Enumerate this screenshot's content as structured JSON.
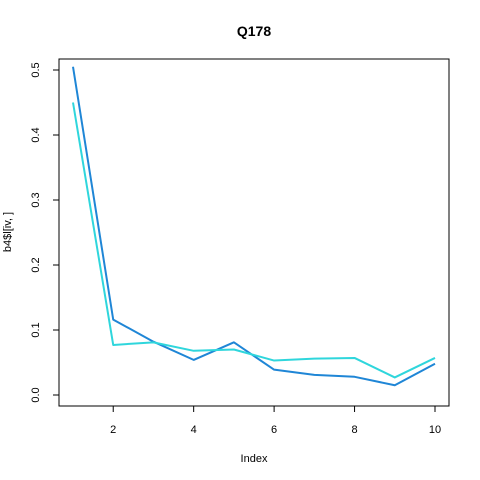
{
  "chart_data": {
    "type": "line",
    "title": "Q178",
    "xlabel": "Index",
    "ylabel": "b4$l[iv, ]",
    "x": [
      1,
      2,
      3,
      4,
      5,
      6,
      7,
      8,
      9,
      10
    ],
    "xlim": [
      1,
      10
    ],
    "ylim": [
      0,
      0.5
    ],
    "x_ticks": [
      2,
      4,
      6,
      8,
      10
    ],
    "y_ticks": [
      0.0,
      0.1,
      0.2,
      0.3,
      0.4,
      0.5
    ],
    "x_tick_labels": [
      "2",
      "4",
      "6",
      "8",
      "10"
    ],
    "y_tick_labels": [
      "0.0",
      "0.1",
      "0.2",
      "0.3",
      "0.4",
      "0.5"
    ],
    "grid": false,
    "series": [
      {
        "color": "#1f86d6",
        "values": [
          0.505,
          0.116,
          0.082,
          0.054,
          0.081,
          0.039,
          0.031,
          0.028,
          0.015,
          0.048
        ]
      },
      {
        "color": "#2fd6dc",
        "values": [
          0.45,
          0.077,
          0.081,
          0.068,
          0.07,
          0.053,
          0.056,
          0.057,
          0.027,
          0.057
        ]
      }
    ]
  }
}
